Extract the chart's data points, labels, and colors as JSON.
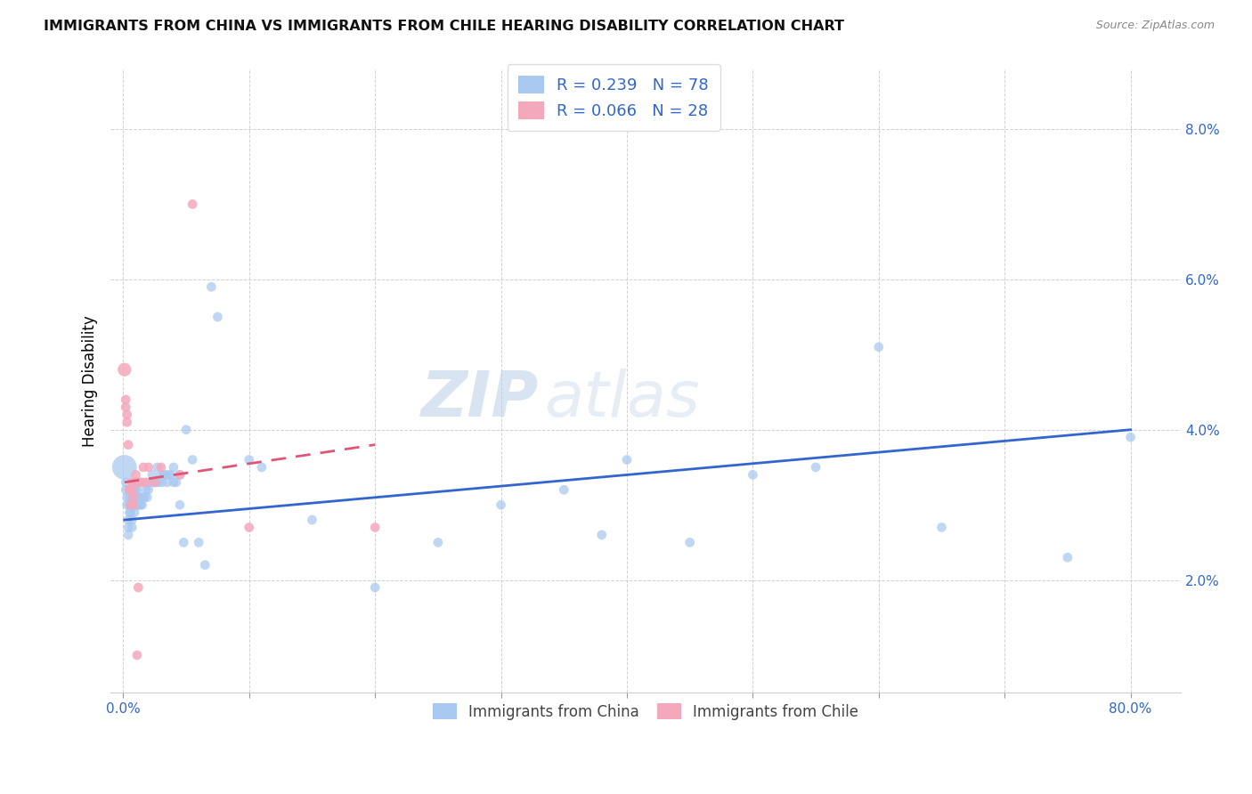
{
  "title": "IMMIGRANTS FROM CHINA VS IMMIGRANTS FROM CHILE HEARING DISABILITY CORRELATION CHART",
  "source": "Source: ZipAtlas.com",
  "xlim": [
    -0.01,
    0.84
  ],
  "ylim": [
    0.005,
    0.088
  ],
  "ylabel": "Hearing Disability",
  "china_color": "#a8c8f0",
  "chile_color": "#f4a8bc",
  "china_line_color": "#3366cc",
  "chile_line_color": "#e05575",
  "legend_R_china": "R = 0.239",
  "legend_N_china": "N = 78",
  "legend_R_chile": "R = 0.066",
  "legend_N_chile": "N = 28",
  "watermark_zip": "ZIP",
  "watermark_atlas": "atlas",
  "china_scatter_x": [
    0.001,
    0.002,
    0.002,
    0.003,
    0.003,
    0.004,
    0.004,
    0.004,
    0.005,
    0.005,
    0.005,
    0.006,
    0.006,
    0.007,
    0.007,
    0.008,
    0.008,
    0.009,
    0.009,
    0.01,
    0.01,
    0.01,
    0.011,
    0.011,
    0.012,
    0.012,
    0.013,
    0.013,
    0.014,
    0.015,
    0.015,
    0.016,
    0.017,
    0.018,
    0.019,
    0.02,
    0.021,
    0.022,
    0.023,
    0.025,
    0.026,
    0.027,
    0.028,
    0.03,
    0.031,
    0.032,
    0.033,
    0.035,
    0.036,
    0.038,
    0.04,
    0.04,
    0.042,
    0.045,
    0.045,
    0.048,
    0.05,
    0.055,
    0.06,
    0.065,
    0.07,
    0.075,
    0.1,
    0.11,
    0.15,
    0.2,
    0.25,
    0.3,
    0.35,
    0.38,
    0.4,
    0.45,
    0.5,
    0.55,
    0.6,
    0.65,
    0.75,
    0.8
  ],
  "china_scatter_y": [
    0.035,
    0.033,
    0.032,
    0.031,
    0.03,
    0.028,
    0.027,
    0.026,
    0.03,
    0.031,
    0.029,
    0.03,
    0.029,
    0.028,
    0.027,
    0.031,
    0.03,
    0.032,
    0.029,
    0.03,
    0.032,
    0.031,
    0.033,
    0.032,
    0.031,
    0.03,
    0.031,
    0.03,
    0.03,
    0.031,
    0.03,
    0.031,
    0.031,
    0.032,
    0.031,
    0.032,
    0.033,
    0.033,
    0.034,
    0.033,
    0.033,
    0.035,
    0.033,
    0.034,
    0.033,
    0.034,
    0.034,
    0.033,
    0.034,
    0.034,
    0.035,
    0.033,
    0.033,
    0.034,
    0.03,
    0.025,
    0.04,
    0.036,
    0.025,
    0.022,
    0.059,
    0.055,
    0.036,
    0.035,
    0.028,
    0.019,
    0.025,
    0.03,
    0.032,
    0.026,
    0.036,
    0.025,
    0.034,
    0.035,
    0.051,
    0.027,
    0.023,
    0.039
  ],
  "china_scatter_size": [
    400,
    60,
    60,
    60,
    60,
    60,
    60,
    60,
    60,
    60,
    60,
    60,
    60,
    60,
    60,
    60,
    60,
    60,
    60,
    60,
    60,
    60,
    60,
    60,
    60,
    60,
    60,
    60,
    60,
    60,
    60,
    60,
    60,
    60,
    60,
    60,
    60,
    60,
    60,
    60,
    60,
    60,
    60,
    60,
    60,
    60,
    60,
    60,
    60,
    60,
    60,
    60,
    60,
    60,
    60,
    60,
    60,
    60,
    60,
    60,
    60,
    60,
    60,
    60,
    60,
    60,
    60,
    60,
    60,
    60,
    60,
    60,
    60,
    60,
    60,
    60,
    60,
    60
  ],
  "chile_scatter_x": [
    0.001,
    0.002,
    0.002,
    0.003,
    0.003,
    0.004,
    0.005,
    0.005,
    0.006,
    0.007,
    0.007,
    0.008,
    0.008,
    0.009,
    0.01,
    0.011,
    0.012,
    0.013,
    0.015,
    0.016,
    0.018,
    0.02,
    0.025,
    0.03,
    0.045,
    0.055,
    0.1,
    0.2
  ],
  "chile_scatter_y": [
    0.048,
    0.044,
    0.043,
    0.042,
    0.041,
    0.038,
    0.032,
    0.032,
    0.03,
    0.032,
    0.033,
    0.031,
    0.03,
    0.033,
    0.034,
    0.01,
    0.019,
    0.033,
    0.033,
    0.035,
    0.033,
    0.035,
    0.033,
    0.035,
    0.034,
    0.07,
    0.027,
    0.027
  ],
  "chile_scatter_size": [
    120,
    60,
    60,
    60,
    60,
    60,
    60,
    60,
    60,
    60,
    60,
    60,
    60,
    60,
    60,
    60,
    60,
    60,
    60,
    60,
    60,
    60,
    60,
    60,
    60,
    60,
    60,
    60
  ],
  "china_trendline_x": [
    0.001,
    0.8
  ],
  "china_trendline_y": [
    0.028,
    0.04
  ],
  "chile_trendline_x": [
    0.001,
    0.2
  ],
  "chile_trendline_y": [
    0.033,
    0.038
  ]
}
